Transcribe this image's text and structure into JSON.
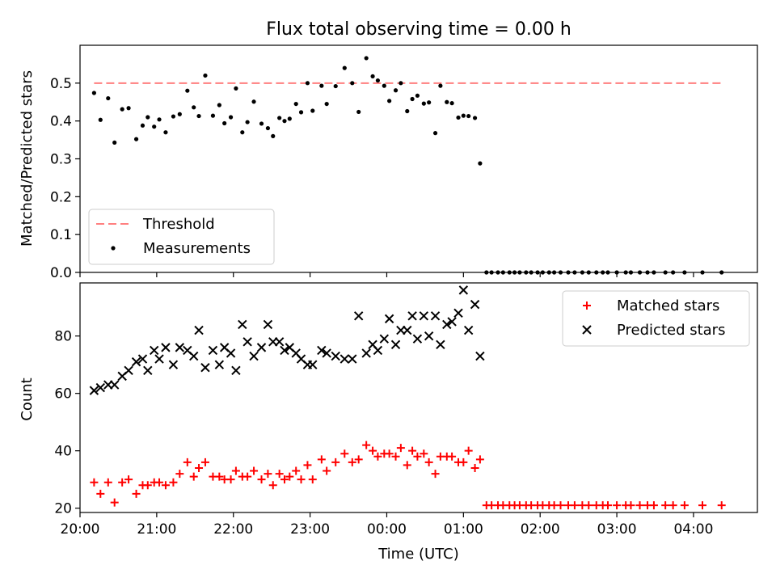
{
  "figure": {
    "title": "Flux total observing time = 0.00 h",
    "xlabel": "Time (UTC)"
  },
  "chart_data": [
    {
      "type": "scatter",
      "ylabel": "Matched/Predicted stars",
      "ylim": [
        0,
        0.6
      ],
      "yticks": [
        "0.0",
        "0.1",
        "0.2",
        "0.3",
        "0.4",
        "0.5"
      ],
      "x_axis": {
        "min": "20:00",
        "max": "04:50",
        "tick_labels": [
          "20:00",
          "21:00",
          "22:00",
          "23:00",
          "00:00",
          "01:00",
          "02:00",
          "03:00",
          "04:00"
        ]
      },
      "legend_position": "lower-left",
      "threshold": {
        "name": "Threshold",
        "value": 0.5,
        "x_start": "20:11",
        "x_end": "04:22",
        "color": "#ff7f7f"
      },
      "series": [
        {
          "name": "Measurements",
          "marker": "dot",
          "color": "#000000",
          "points": [
            [
              "20:11",
              0.474
            ],
            [
              "20:16",
              0.403
            ],
            [
              "20:22",
              0.46
            ],
            [
              "20:27",
              0.343
            ],
            [
              "20:33",
              0.431
            ],
            [
              "20:38",
              0.434
            ],
            [
              "20:44",
              0.352
            ],
            [
              "20:49",
              0.388
            ],
            [
              "20:53",
              0.41
            ],
            [
              "20:58",
              0.385
            ],
            [
              "21:02",
              0.404
            ],
            [
              "21:07",
              0.37
            ],
            [
              "21:13",
              0.412
            ],
            [
              "21:18",
              0.418
            ],
            [
              "21:24",
              0.48
            ],
            [
              "21:29",
              0.436
            ],
            [
              "21:33",
              0.413
            ],
            [
              "21:38",
              0.52
            ],
            [
              "21:44",
              0.414
            ],
            [
              "21:49",
              0.442
            ],
            [
              "21:53",
              0.394
            ],
            [
              "21:58",
              0.41
            ],
            [
              "22:02",
              0.486
            ],
            [
              "22:07",
              0.37
            ],
            [
              "22:11",
              0.397
            ],
            [
              "22:16",
              0.451
            ],
            [
              "22:22",
              0.393
            ],
            [
              "22:27",
              0.381
            ],
            [
              "22:31",
              0.36
            ],
            [
              "22:36",
              0.408
            ],
            [
              "22:40",
              0.4
            ],
            [
              "22:44",
              0.406
            ],
            [
              "22:49",
              0.445
            ],
            [
              "22:53",
              0.423
            ],
            [
              "22:58",
              0.5
            ],
            [
              "23:02",
              0.427
            ],
            [
              "23:09",
              0.493
            ],
            [
              "23:13",
              0.445
            ],
            [
              "23:20",
              0.492
            ],
            [
              "23:27",
              0.54
            ],
            [
              "23:33",
              0.5
            ],
            [
              "23:38",
              0.424
            ],
            [
              "23:44",
              0.566
            ],
            [
              "23:49",
              0.518
            ],
            [
              "23:53",
              0.507
            ],
            [
              "23:58",
              0.493
            ],
            [
              "00:02",
              0.453
            ],
            [
              "00:07",
              0.481
            ],
            [
              "00:11",
              0.5
            ],
            [
              "00:16",
              0.426
            ],
            [
              "00:20",
              0.458
            ],
            [
              "00:24",
              0.467
            ],
            [
              "00:29",
              0.446
            ],
            [
              "00:33",
              0.449
            ],
            [
              "00:38",
              0.368
            ],
            [
              "00:42",
              0.493
            ],
            [
              "00:47",
              0.45
            ],
            [
              "00:51",
              0.447
            ],
            [
              "00:56",
              0.409
            ],
            [
              "01:00",
              0.414
            ],
            [
              "01:04",
              0.413
            ],
            [
              "01:09",
              0.408
            ],
            [
              "01:13",
              0.288
            ],
            [
              "01:18",
              0.0
            ],
            [
              "01:22",
              0.0
            ],
            [
              "01:27",
              0.0
            ],
            [
              "01:31",
              0.0
            ],
            [
              "01:36",
              0.0
            ],
            [
              "01:40",
              0.0
            ],
            [
              "01:44",
              0.0
            ],
            [
              "01:49",
              0.0
            ],
            [
              "01:53",
              0.0
            ],
            [
              "01:58",
              0.0
            ],
            [
              "02:02",
              0.0
            ],
            [
              "02:07",
              0.0
            ],
            [
              "02:11",
              0.0
            ],
            [
              "02:16",
              0.0
            ],
            [
              "02:22",
              0.0
            ],
            [
              "02:27",
              0.0
            ],
            [
              "02:33",
              0.0
            ],
            [
              "02:38",
              0.0
            ],
            [
              "02:44",
              0.0
            ],
            [
              "02:49",
              0.0
            ],
            [
              "02:53",
              0.0
            ],
            [
              "03:00",
              0.0
            ],
            [
              "03:07",
              0.0
            ],
            [
              "03:11",
              0.0
            ],
            [
              "03:18",
              0.0
            ],
            [
              "03:24",
              0.0
            ],
            [
              "03:29",
              0.0
            ],
            [
              "03:38",
              0.0
            ],
            [
              "03:44",
              0.0
            ],
            [
              "03:53",
              0.0
            ],
            [
              "04:07",
              0.0
            ],
            [
              "04:22",
              0.0
            ]
          ]
        }
      ]
    },
    {
      "type": "scatter",
      "ylabel": "Count",
      "ylim": [
        18.5,
        98.5
      ],
      "yticks": [
        "20",
        "40",
        "60",
        "80"
      ],
      "x_axis": {
        "min": "20:00",
        "max": "04:50",
        "tick_labels": [
          "20:00",
          "21:00",
          "22:00",
          "23:00",
          "00:00",
          "01:00",
          "02:00",
          "03:00",
          "04:00"
        ]
      },
      "legend_position": "upper-right",
      "series": [
        {
          "name": "Matched stars",
          "marker": "plus",
          "color": "#ff0000",
          "points": [
            [
              "20:11",
              29
            ],
            [
              "20:16",
              25
            ],
            [
              "20:22",
              29
            ],
            [
              "20:27",
              22
            ],
            [
              "20:33",
              29
            ],
            [
              "20:38",
              30
            ],
            [
              "20:44",
              25
            ],
            [
              "20:49",
              28
            ],
            [
              "20:53",
              28
            ],
            [
              "20:58",
              29
            ],
            [
              "21:02",
              29
            ],
            [
              "21:07",
              28
            ],
            [
              "21:13",
              29
            ],
            [
              "21:18",
              32
            ],
            [
              "21:24",
              36
            ],
            [
              "21:29",
              31
            ],
            [
              "21:33",
              34
            ],
            [
              "21:38",
              36
            ],
            [
              "21:44",
              31
            ],
            [
              "21:49",
              31
            ],
            [
              "21:53",
              30
            ],
            [
              "21:58",
              30
            ],
            [
              "22:02",
              33
            ],
            [
              "22:07",
              31
            ],
            [
              "22:11",
              31
            ],
            [
              "22:16",
              33
            ],
            [
              "22:22",
              30
            ],
            [
              "22:27",
              32
            ],
            [
              "22:31",
              28
            ],
            [
              "22:36",
              32
            ],
            [
              "22:40",
              30
            ],
            [
              "22:44",
              31
            ],
            [
              "22:49",
              33
            ],
            [
              "22:53",
              30
            ],
            [
              "22:58",
              35
            ],
            [
              "23:02",
              30
            ],
            [
              "23:09",
              37
            ],
            [
              "23:13",
              33
            ],
            [
              "23:20",
              36
            ],
            [
              "23:27",
              39
            ],
            [
              "23:33",
              36
            ],
            [
              "23:38",
              37
            ],
            [
              "23:44",
              42
            ],
            [
              "23:49",
              40
            ],
            [
              "23:53",
              38
            ],
            [
              "23:58",
              39
            ],
            [
              "00:02",
              39
            ],
            [
              "00:07",
              38
            ],
            [
              "00:11",
              41
            ],
            [
              "00:16",
              35
            ],
            [
              "00:20",
              40
            ],
            [
              "00:24",
              38
            ],
            [
              "00:29",
              39
            ],
            [
              "00:33",
              36
            ],
            [
              "00:38",
              32
            ],
            [
              "00:42",
              38
            ],
            [
              "00:47",
              38
            ],
            [
              "00:51",
              38
            ],
            [
              "00:56",
              36
            ],
            [
              "01:00",
              36
            ],
            [
              "01:04",
              40
            ],
            [
              "01:09",
              34
            ],
            [
              "01:13",
              37
            ],
            [
              "01:18",
              21
            ],
            [
              "01:22",
              21
            ],
            [
              "01:27",
              21
            ],
            [
              "01:31",
              21
            ],
            [
              "01:36",
              21
            ],
            [
              "01:40",
              21
            ],
            [
              "01:44",
              21
            ],
            [
              "01:49",
              21
            ],
            [
              "01:53",
              21
            ],
            [
              "01:58",
              21
            ],
            [
              "02:02",
              21
            ],
            [
              "02:07",
              21
            ],
            [
              "02:11",
              21
            ],
            [
              "02:16",
              21
            ],
            [
              "02:22",
              21
            ],
            [
              "02:27",
              21
            ],
            [
              "02:33",
              21
            ],
            [
              "02:38",
              21
            ],
            [
              "02:44",
              21
            ],
            [
              "02:49",
              21
            ],
            [
              "02:53",
              21
            ],
            [
              "03:00",
              21
            ],
            [
              "03:07",
              21
            ],
            [
              "03:11",
              21
            ],
            [
              "03:18",
              21
            ],
            [
              "03:24",
              21
            ],
            [
              "03:29",
              21
            ],
            [
              "03:38",
              21
            ],
            [
              "03:44",
              21
            ],
            [
              "03:53",
              21
            ],
            [
              "04:07",
              21
            ],
            [
              "04:22",
              21
            ]
          ]
        },
        {
          "name": "Predicted stars",
          "marker": "x",
          "color": "#000000",
          "points": [
            [
              "20:11",
              61
            ],
            [
              "20:16",
              62
            ],
            [
              "20:22",
              63
            ],
            [
              "20:27",
              63
            ],
            [
              "20:33",
              66
            ],
            [
              "20:38",
              68
            ],
            [
              "20:44",
              71
            ],
            [
              "20:49",
              72
            ],
            [
              "20:53",
              68
            ],
            [
              "20:58",
              75
            ],
            [
              "21:02",
              72
            ],
            [
              "21:07",
              76
            ],
            [
              "21:13",
              70
            ],
            [
              "21:18",
              76
            ],
            [
              "21:24",
              75
            ],
            [
              "21:29",
              73
            ],
            [
              "21:33",
              82
            ],
            [
              "21:38",
              69
            ],
            [
              "21:44",
              75
            ],
            [
              "21:49",
              70
            ],
            [
              "21:53",
              76
            ],
            [
              "21:58",
              74
            ],
            [
              "22:02",
              68
            ],
            [
              "22:07",
              84
            ],
            [
              "22:11",
              78
            ],
            [
              "22:16",
              73
            ],
            [
              "22:22",
              76
            ],
            [
              "22:27",
              84
            ],
            [
              "22:31",
              78
            ],
            [
              "22:36",
              78
            ],
            [
              "22:40",
              75
            ],
            [
              "22:44",
              76
            ],
            [
              "22:49",
              74
            ],
            [
              "22:53",
              72
            ],
            [
              "22:58",
              70
            ],
            [
              "23:02",
              70
            ],
            [
              "23:09",
              75
            ],
            [
              "23:13",
              74
            ],
            [
              "23:20",
              73
            ],
            [
              "23:27",
              72
            ],
            [
              "23:33",
              72
            ],
            [
              "23:38",
              87
            ],
            [
              "23:44",
              74
            ],
            [
              "23:49",
              77
            ],
            [
              "23:53",
              75
            ],
            [
              "23:58",
              79
            ],
            [
              "00:02",
              86
            ],
            [
              "00:07",
              77
            ],
            [
              "00:11",
              82
            ],
            [
              "00:16",
              82
            ],
            [
              "00:20",
              87
            ],
            [
              "00:24",
              79
            ],
            [
              "00:29",
              87
            ],
            [
              "00:33",
              80
            ],
            [
              "00:38",
              87
            ],
            [
              "00:42",
              77
            ],
            [
              "00:47",
              84
            ],
            [
              "00:51",
              85
            ],
            [
              "00:56",
              88
            ],
            [
              "01:00",
              96
            ],
            [
              "01:04",
              82
            ],
            [
              "01:09",
              91
            ],
            [
              "01:13",
              73
            ]
          ]
        }
      ]
    }
  ]
}
